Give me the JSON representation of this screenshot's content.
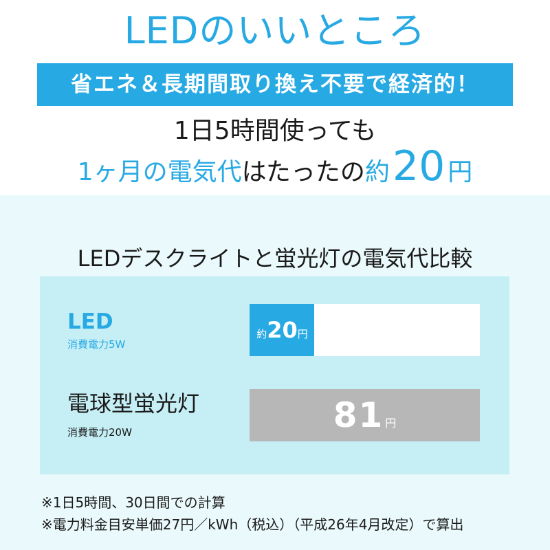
{
  "header": {
    "title": "LEDのいいところ",
    "banner": "省エネ＆長期間取り換え不要で経済的！",
    "line1": "1日5時間使っても",
    "line2_part_a": "1ヶ月の電気代",
    "line2_part_b": "はたったの",
    "line2_part_c": "約",
    "line2_amount": "20",
    "line2_unit": "円"
  },
  "comparison": {
    "title": "LEDデスクライトと蛍光灯の電気代比較",
    "led": {
      "name": "LED",
      "power": "消費電力5W",
      "prefix": "約",
      "value": "20",
      "unit": "円",
      "fill_fraction": 0.28
    },
    "fluorescent": {
      "name": "電球型蛍光灯",
      "power": "消費電力20W",
      "value": "81",
      "unit": "円",
      "fill_fraction": 1.0
    }
  },
  "notes": [
    "※1日5時間、30日間での計算",
    "※電力料金目安単価27円／kWh（税込）（平成26年4月改定）で算出"
  ],
  "colors": {
    "accent": "#27a9e3",
    "panel": "#c6eff5",
    "background_lower": "#eaf9fb",
    "fluorescent_bar": "#b7b7b7"
  }
}
